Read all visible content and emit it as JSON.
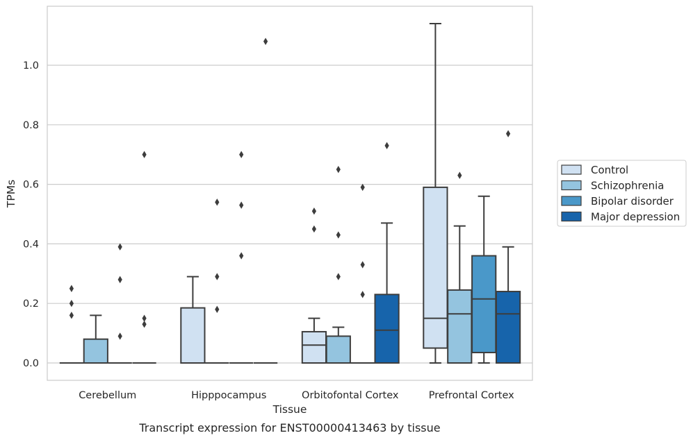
{
  "caption": "Transcript expression for ENST00000413463 by tissue",
  "chart_data": {
    "type": "box",
    "xlabel": "Tissue",
    "ylabel": "TPMs",
    "ylim": [
      -0.055,
      1.2
    ],
    "yticks": [
      "0.0",
      "0.2",
      "0.4",
      "0.6",
      "0.8",
      "1.0"
    ],
    "ytick_values": [
      0,
      0.2,
      0.4,
      0.6,
      0.8,
      1.0
    ],
    "grid": "horizontal",
    "legend_position": "right",
    "categories": [
      "Cerebellum",
      "Hipppocampus",
      "Orbitofontal Cortex",
      "Prefrontal Cortex"
    ],
    "series": [
      {
        "name": "Control",
        "color": "#d0e1f2",
        "boxes": [
          {
            "q1": 0,
            "median": 0,
            "q3": 0,
            "whislo": 0,
            "whishi": 0,
            "fliers": [
              0.25,
              0.2,
              0.16
            ]
          },
          {
            "q1": 0,
            "median": 0,
            "q3": 0.185,
            "whislo": 0,
            "whishi": 0.29,
            "fliers": []
          },
          {
            "q1": 0,
            "median": 0.06,
            "q3": 0.105,
            "whislo": 0,
            "whishi": 0.15,
            "fliers": [
              0.51,
              0.45
            ]
          },
          {
            "q1": 0.05,
            "median": 0.15,
            "q3": 0.59,
            "whislo": 0,
            "whishi": 1.14,
            "fliers": []
          }
        ]
      },
      {
        "name": "Schizophrenia",
        "color": "#94c4df",
        "boxes": [
          {
            "q1": 0,
            "median": 0,
            "q3": 0.08,
            "whislo": 0,
            "whishi": 0.16,
            "fliers": []
          },
          {
            "q1": 0,
            "median": 0,
            "q3": 0,
            "whislo": 0,
            "whishi": 0,
            "fliers": [
              0.54,
              0.29,
              0.18
            ]
          },
          {
            "q1": 0,
            "median": 0,
            "q3": 0.09,
            "whislo": 0,
            "whishi": 0.12,
            "fliers": [
              0.65,
              0.43,
              0.29
            ]
          },
          {
            "q1": 0,
            "median": 0.165,
            "q3": 0.245,
            "whislo": 0,
            "whishi": 0.46,
            "fliers": [
              0.63
            ]
          }
        ]
      },
      {
        "name": "Bipolar disorder",
        "color": "#4a98c9",
        "boxes": [
          {
            "q1": 0,
            "median": 0,
            "q3": 0,
            "whislo": 0,
            "whishi": 0,
            "fliers": [
              0.39,
              0.28,
              0.09
            ]
          },
          {
            "q1": 0,
            "median": 0,
            "q3": 0,
            "whislo": 0,
            "whishi": 0,
            "fliers": [
              0.7,
              0.53,
              0.36
            ]
          },
          {
            "q1": 0,
            "median": 0,
            "q3": 0,
            "whislo": 0,
            "whishi": 0,
            "fliers": [
              0.59,
              0.33,
              0.23
            ]
          },
          {
            "q1": 0.035,
            "median": 0.215,
            "q3": 0.36,
            "whislo": 0,
            "whishi": 0.56,
            "fliers": []
          }
        ]
      },
      {
        "name": "Major depression",
        "color": "#1764ab",
        "boxes": [
          {
            "q1": 0,
            "median": 0,
            "q3": 0,
            "whislo": 0,
            "whishi": 0,
            "fliers": [
              0.7,
              0.15,
              0.13
            ]
          },
          {
            "q1": 0,
            "median": 0,
            "q3": 0,
            "whislo": 0,
            "whishi": 0,
            "fliers": [
              1.08
            ]
          },
          {
            "q1": 0,
            "median": 0.11,
            "q3": 0.23,
            "whislo": 0,
            "whishi": 0.47,
            "fliers": [
              0.73
            ]
          },
          {
            "q1": 0,
            "median": 0.165,
            "q3": 0.24,
            "whislo": 0,
            "whishi": 0.39,
            "fliers": [
              0.77
            ]
          }
        ]
      }
    ]
  }
}
